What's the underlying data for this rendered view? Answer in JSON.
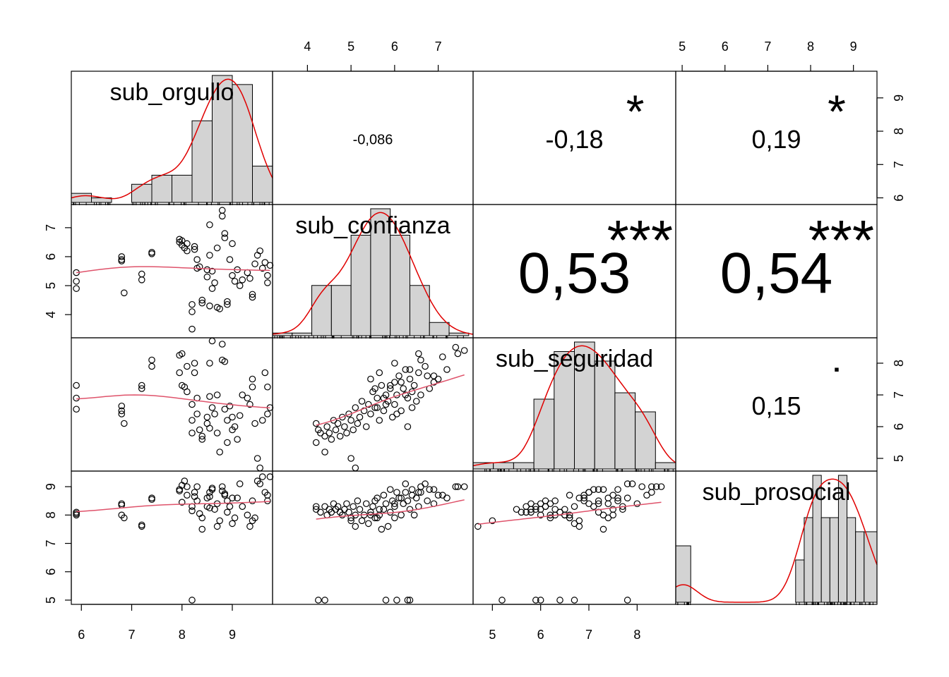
{
  "chart_data": {
    "type": "scatter",
    "variables": [
      {
        "name": "sub_orgullo",
        "range": [
          5.8,
          9.8
        ],
        "ticks": [
          6,
          7,
          8,
          9
        ],
        "tick_labels": [
          "6",
          "7",
          "8",
          "9"
        ]
      },
      {
        "name": "sub_confianza",
        "range": [
          3.2,
          7.8
        ],
        "ticks": [
          4,
          5,
          6,
          7
        ],
        "tick_labels": [
          "4",
          "5",
          "6",
          "7"
        ]
      },
      {
        "name": "sub_seguridad",
        "range": [
          4.6,
          8.8
        ],
        "ticks": [
          5,
          6,
          7,
          8
        ],
        "tick_labels": [
          "5",
          "6",
          "7",
          "8"
        ]
      },
      {
        "name": "sub_prosocial",
        "range": [
          4.85,
          9.55
        ],
        "ticks": [
          5,
          6,
          7,
          8,
          9
        ],
        "tick_labels": [
          "5",
          "6",
          "7",
          "8",
          "9"
        ]
      }
    ],
    "correlations": [
      {
        "row": 0,
        "col": 1,
        "label": "-0,086",
        "stars": ""
      },
      {
        "row": 0,
        "col": 2,
        "label": "-0,18",
        "stars": "*"
      },
      {
        "row": 0,
        "col": 3,
        "label": "0,19",
        "stars": "*"
      },
      {
        "row": 1,
        "col": 2,
        "label": "0,53",
        "stars": "***"
      },
      {
        "row": 1,
        "col": 3,
        "label": "0,54",
        "stars": "***"
      },
      {
        "row": 2,
        "col": 3,
        "label": "0,15",
        "stars": "."
      }
    ],
    "histograms": [
      {
        "breaks": [
          5.8,
          6.2,
          6.6,
          7.0,
          7.4,
          7.8,
          8.2,
          8.6,
          9.0,
          9.4,
          9.8
        ],
        "counts": [
          2,
          1,
          0,
          4,
          6,
          6,
          18,
          28,
          26,
          8
        ]
      },
      {
        "breaks": [
          3.2,
          3.65,
          4.1,
          4.55,
          5.0,
          5.45,
          5.9,
          6.35,
          6.8,
          7.25,
          7.7
        ],
        "counts": [
          1,
          1,
          19,
          19,
          38,
          48,
          38,
          19,
          5,
          1
        ]
      },
      {
        "breaks": [
          4.6,
          5.02,
          5.44,
          5.86,
          6.28,
          6.7,
          7.12,
          7.54,
          7.96,
          8.38,
          8.8
        ],
        "counts": [
          2,
          2,
          2,
          22,
          37,
          40,
          34,
          24,
          18,
          2
        ]
      },
      {
        "breaks": [
          4.85,
          5.2,
          7.65,
          7.85,
          8.05,
          8.25,
          8.45,
          8.65,
          8.85,
          9.05,
          9.25,
          9.55
        ],
        "counts": [
          4,
          0,
          3,
          6,
          9,
          6,
          6,
          9,
          6,
          5,
          5
        ]
      }
    ],
    "pair_points": {
      "orgullo": [
        5.9,
        5.9,
        5.9,
        6.8,
        6.8,
        6.8,
        6.85,
        7.2,
        7.2,
        7.4,
        7.4,
        7.95,
        7.95,
        8.0,
        8.0,
        8.05,
        8.1,
        8.1,
        8.2,
        8.2,
        8.2,
        8.25,
        8.25,
        8.3,
        8.3,
        8.35,
        8.4,
        8.4,
        8.5,
        8.5,
        8.55,
        8.55,
        8.55,
        8.6,
        8.6,
        8.65,
        8.7,
        8.7,
        8.75,
        8.8,
        8.8,
        8.85,
        8.85,
        8.9,
        8.9,
        8.95,
        9.0,
        9.0,
        9.05,
        9.1,
        9.15,
        9.2,
        9.3,
        9.35,
        9.4,
        9.4,
        9.45,
        9.5,
        9.55,
        9.6,
        9.65,
        9.7,
        9.7,
        9.75
      ],
      "confianza": [
        5.45,
        5.15,
        4.9,
        5.85,
        5.9,
        6.0,
        4.75,
        5.2,
        5.4,
        6.1,
        6.15,
        6.6,
        6.5,
        6.4,
        6.55,
        6.3,
        6.2,
        6.45,
        3.5,
        4.1,
        4.35,
        6.25,
        6.35,
        5.6,
        5.9,
        5.65,
        4.4,
        4.5,
        5.3,
        5.55,
        6.05,
        4.3,
        7.1,
        5.5,
        4.9,
        5.1,
        6.3,
        4.25,
        4.2,
        7.6,
        7.4,
        6.8,
        6.65,
        4.35,
        4.45,
        5.9,
        5.35,
        6.45,
        5.15,
        5.55,
        5.0,
        5.2,
        5.45,
        5.25,
        4.7,
        4.6,
        5.75,
        6.05,
        6.2,
        5.6,
        5.8,
        5.1,
        5.35,
        5.7
      ],
      "seguridad": [
        7.3,
        6.9,
        6.55,
        6.5,
        6.4,
        6.65,
        6.1,
        7.2,
        7.3,
        8.1,
        7.9,
        8.25,
        7.7,
        7.3,
        8.3,
        7.25,
        7.1,
        7.9,
        5.8,
        6.2,
        6.7,
        7.7,
        8.0,
        6.4,
        6.9,
        5.9,
        5.6,
        5.7,
        6.3,
        6.1,
        6.95,
        5.95,
        8.0,
        8.7,
        6.6,
        6.4,
        7.0,
        5.8,
        5.2,
        8.1,
        8.6,
        8.05,
        6.55,
        5.5,
        6.2,
        6.65,
        6.3,
        5.9,
        6.0,
        5.6,
        6.35,
        7.0,
        6.9,
        6.7,
        7.5,
        7.25,
        6.1,
        5.0,
        4.7,
        6.2,
        7.7,
        7.25,
        6.4,
        6.6
      ],
      "prosocial": [
        8.1,
        8.05,
        8.0,
        8.4,
        8.35,
        8.0,
        7.9,
        7.6,
        7.65,
        8.6,
        8.55,
        8.9,
        8.85,
        8.45,
        9.05,
        9.2,
        9.0,
        8.7,
        5.0,
        8.3,
        8.15,
        8.65,
        8.8,
        8.5,
        9.0,
        8.05,
        7.9,
        7.5,
        8.3,
        8.6,
        8.8,
        8.65,
        8.25,
        8.95,
        8.9,
        8.2,
        8.4,
        7.6,
        7.8,
        8.85,
        9.0,
        8.7,
        8.75,
        8.1,
        8.5,
        8.3,
        8.6,
        7.7,
        7.9,
        8.6,
        9.1,
        8.3,
        8.0,
        7.6,
        7.8,
        8.5,
        7.9,
        9.2,
        9.1,
        9.35,
        8.8,
        8.7,
        8.5,
        9.35
      ],
      "extra_confianza": [
        7.6,
        7.2,
        7.0,
        6.9,
        6.8,
        6.75,
        6.6,
        6.55,
        6.5,
        6.45,
        6.4,
        6.4,
        6.35,
        6.3,
        6.25,
        6.2,
        6.15,
        6.1,
        6.05,
        6.0,
        6.0,
        5.95,
        5.9,
        5.85,
        5.8,
        5.75,
        5.7,
        5.65,
        5.6,
        5.55,
        5.5,
        5.45,
        5.4,
        5.35,
        5.3,
        5.25,
        5.2,
        5.15,
        5.1,
        5.05,
        5.0,
        4.95,
        4.9,
        4.85,
        4.8,
        4.75,
        4.7,
        4.65,
        4.6,
        4.55,
        4.5,
        4.45,
        4.4,
        4.3,
        4.2,
        6.55,
        6.6,
        6.7,
        6.9,
        7.1,
        7.4,
        7.45,
        6.15,
        6.25,
        5.75,
        5.9,
        6.05,
        6.3,
        6.35,
        5.8,
        4.4,
        4.25,
        4.2,
        5.0,
        5.1,
        5.45,
        5.55,
        5.6,
        6.0,
        5.65
      ],
      "extra_seguridad": [
        8.4,
        7.8,
        7.5,
        7.4,
        7.2,
        7.6,
        7.0,
        7.7,
        6.8,
        7.3,
        6.6,
        7.1,
        7.5,
        6.9,
        7.8,
        7.2,
        6.5,
        7.6,
        7.0,
        7.4,
        6.7,
        6.3,
        7.2,
        6.8,
        7.0,
        6.5,
        7.3,
        6.2,
        6.9,
        6.6,
        7.1,
        6.4,
        6.7,
        6.0,
        6.5,
        6.8,
        6.3,
        6.1,
        6.6,
        5.9,
        6.2,
        6.4,
        5.8,
        6.0,
        6.3,
        5.7,
        6.1,
        5.9,
        6.2,
        5.6,
        5.8,
        6.0,
        5.7,
        5.8,
        5.5,
        8.3,
        8.1,
        7.9,
        7.6,
        8.2,
        8.5,
        8.3,
        7.4,
        7.0,
        6.9,
        7.3,
        6.4,
        6.0,
        7.8,
        6.7,
        5.2,
        5.9,
        6.1,
        5.0,
        4.7,
        7.5,
        7.2,
        6.6,
        8.0,
        7.7
      ],
      "extra_prosocial": [
        9.0,
        8.6,
        8.7,
        8.4,
        8.9,
        8.5,
        8.8,
        8.3,
        8.6,
        8.0,
        8.7,
        8.9,
        8.2,
        8.5,
        9.1,
        8.4,
        8.0,
        8.6,
        8.8,
        7.9,
        8.3,
        8.5,
        8.1,
        7.6,
        8.4,
        8.2,
        7.5,
        8.0,
        8.6,
        7.9,
        8.3,
        8.1,
        7.7,
        8.4,
        8.0,
        7.8,
        8.2,
        8.5,
        8.0,
        8.3,
        7.9,
        8.1,
        8.4,
        8.2,
        8.0,
        8.1,
        8.3,
        8.2,
        8.4,
        8.1,
        8.2,
        8.0,
        8.3,
        8.1,
        8.2,
        8.8,
        9.0,
        9.1,
        8.9,
        8.7,
        9.0,
        9.0,
        8.6,
        8.8,
        8.7,
        8.9,
        5.0,
        5.0,
        5.0,
        5.0,
        5.0,
        5.0,
        8.3,
        7.8,
        7.6,
        8.0,
        8.5,
        7.9,
        8.4,
        8.2
      ]
    }
  }
}
